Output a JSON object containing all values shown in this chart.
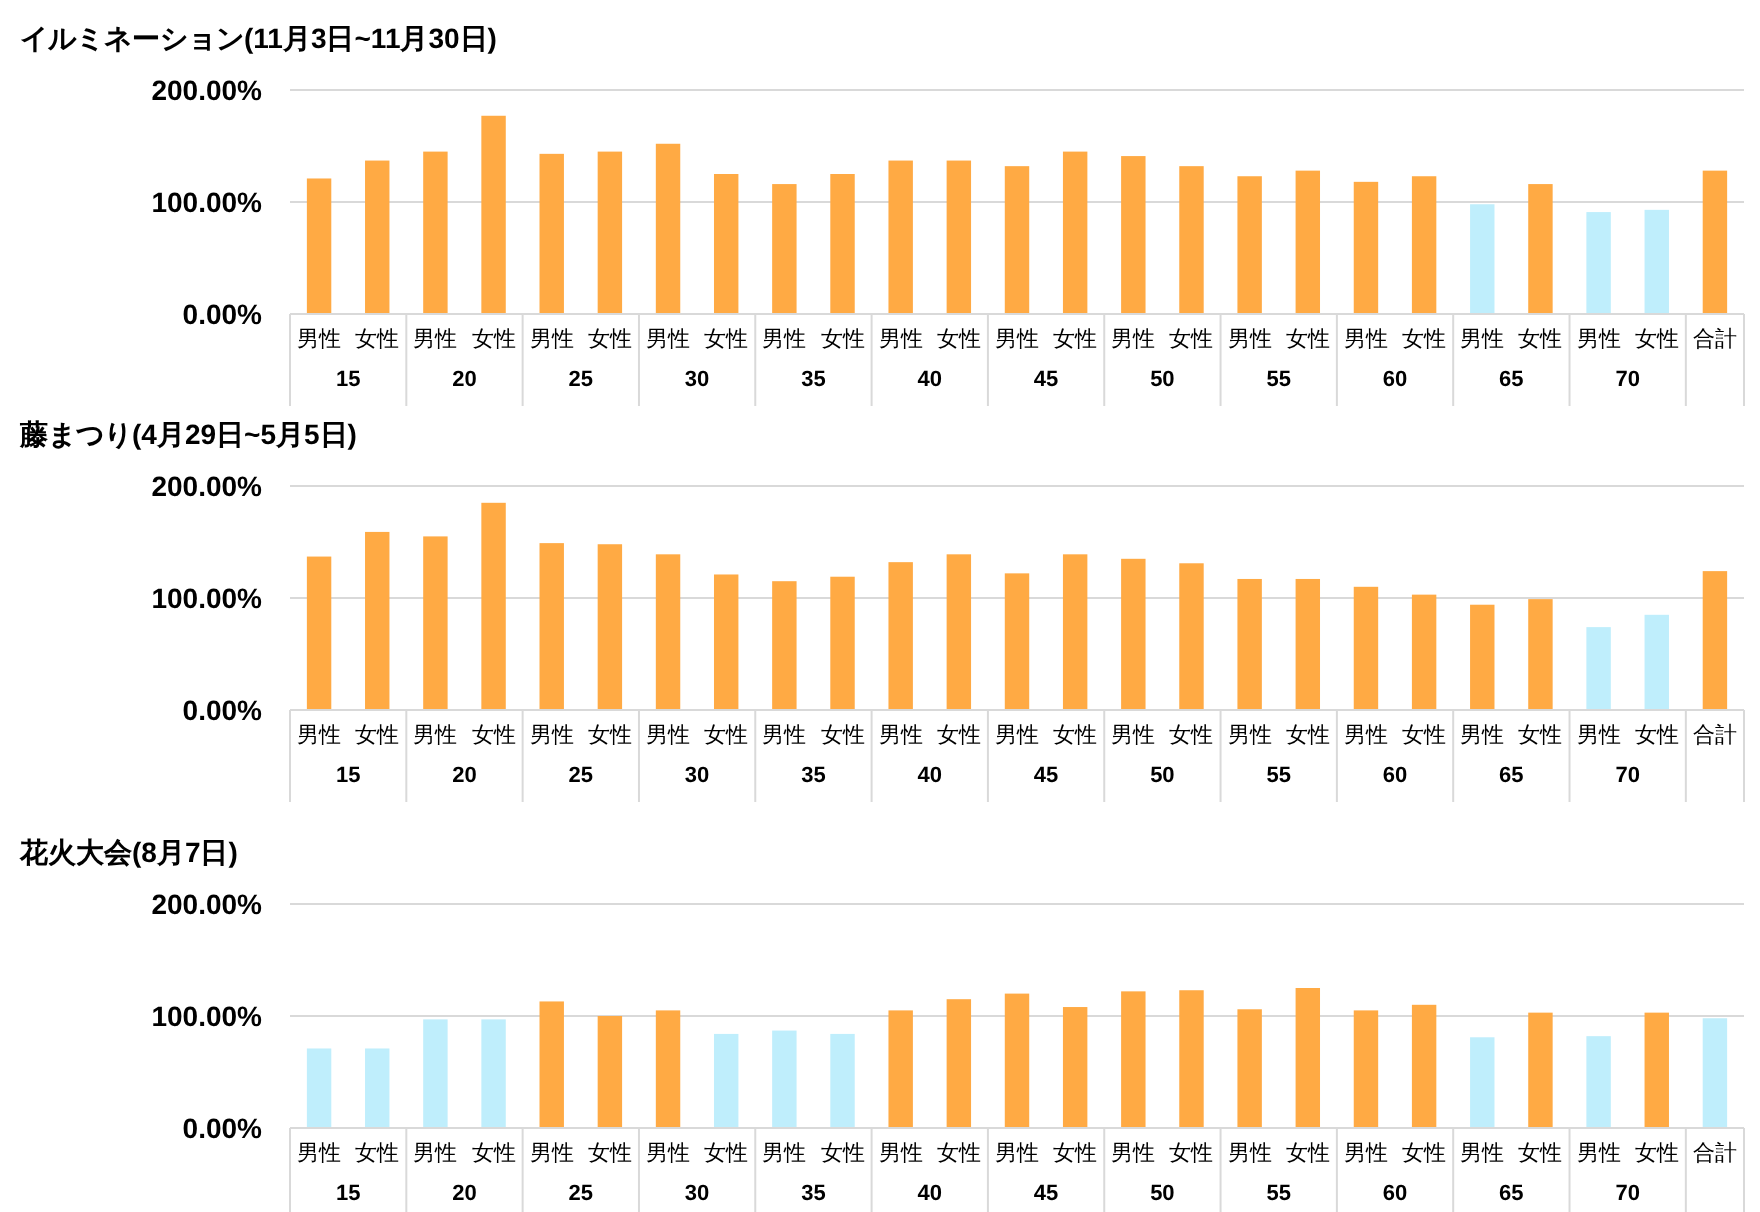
{
  "chart_data": [
    {
      "type": "bar",
      "title": "イルミネーション(11月3日~11月30日)",
      "categories": [
        "男性",
        "女性",
        "男性",
        "女性",
        "男性",
        "女性",
        "男性",
        "女性",
        "男性",
        "女性",
        "男性",
        "女性",
        "男性",
        "女性",
        "男性",
        "女性",
        "男性",
        "女性",
        "男性",
        "女性",
        "男性",
        "女性",
        "男性",
        "女性",
        "合計"
      ],
      "annotations": [
        "15",
        "20",
        "25",
        "30",
        "35",
        "40",
        "45",
        "50",
        "55",
        "60",
        "65",
        "70"
      ],
      "values": [
        121,
        137,
        145,
        177,
        143,
        145,
        152,
        125,
        116,
        125,
        137,
        137,
        132,
        145,
        141,
        132,
        123,
        128,
        118,
        123,
        98,
        116,
        91,
        93,
        128
      ],
      "colors": [
        "#ffaa44",
        "#ffaa44",
        "#ffaa44",
        "#ffaa44",
        "#ffaa44",
        "#ffaa44",
        "#ffaa44",
        "#ffaa44",
        "#ffaa44",
        "#ffaa44",
        "#ffaa44",
        "#ffaa44",
        "#ffaa44",
        "#ffaa44",
        "#ffaa44",
        "#ffaa44",
        "#ffaa44",
        "#ffaa44",
        "#ffaa44",
        "#ffaa44",
        "#bfeefc",
        "#ffaa44",
        "#bfeefc",
        "#bfeefc",
        "#ffaa44"
      ],
      "ylim": [
        0,
        200
      ],
      "yticks": [
        {
          "value": 0,
          "label": "0.00%"
        },
        {
          "value": 100,
          "label": "100.00%"
        },
        {
          "value": 200,
          "label": "200.00%"
        }
      ],
      "grid": "y"
    },
    {
      "type": "bar",
      "title": "藤まつり(4月29日~5月5日)",
      "categories": [
        "男性",
        "女性",
        "男性",
        "女性",
        "男性",
        "女性",
        "男性",
        "女性",
        "男性",
        "女性",
        "男性",
        "女性",
        "男性",
        "女性",
        "男性",
        "女性",
        "男性",
        "女性",
        "男性",
        "女性",
        "男性",
        "女性",
        "男性",
        "女性",
        "合計"
      ],
      "annotations": [
        "15",
        "20",
        "25",
        "30",
        "35",
        "40",
        "45",
        "50",
        "55",
        "60",
        "65",
        "70"
      ],
      "values": [
        137,
        159,
        155,
        185,
        149,
        148,
        139,
        121,
        115,
        119,
        132,
        139,
        122,
        139,
        135,
        131,
        117,
        117,
        110,
        103,
        94,
        99,
        74,
        85,
        124
      ],
      "colors": [
        "#ffaa44",
        "#ffaa44",
        "#ffaa44",
        "#ffaa44",
        "#ffaa44",
        "#ffaa44",
        "#ffaa44",
        "#ffaa44",
        "#ffaa44",
        "#ffaa44",
        "#ffaa44",
        "#ffaa44",
        "#ffaa44",
        "#ffaa44",
        "#ffaa44",
        "#ffaa44",
        "#ffaa44",
        "#ffaa44",
        "#ffaa44",
        "#ffaa44",
        "#ffaa44",
        "#ffaa44",
        "#bfeefc",
        "#bfeefc",
        "#ffaa44"
      ],
      "ylim": [
        0,
        200
      ],
      "yticks": [
        {
          "value": 0,
          "label": "0.00%"
        },
        {
          "value": 100,
          "label": "100.00%"
        },
        {
          "value": 200,
          "label": "200.00%"
        }
      ],
      "grid": "y"
    },
    {
      "type": "bar",
      "title": "花火大会(8月7日)",
      "categories": [
        "男性",
        "女性",
        "男性",
        "女性",
        "男性",
        "女性",
        "男性",
        "女性",
        "男性",
        "女性",
        "男性",
        "女性",
        "男性",
        "女性",
        "男性",
        "女性",
        "男性",
        "女性",
        "男性",
        "女性",
        "男性",
        "女性",
        "男性",
        "女性",
        "合計"
      ],
      "annotations": [
        "15",
        "20",
        "25",
        "30",
        "35",
        "40",
        "45",
        "50",
        "55",
        "60",
        "65",
        "70"
      ],
      "values": [
        71,
        71,
        97,
        97,
        113,
        100,
        105,
        84,
        87,
        84,
        105,
        115,
        120,
        108,
        122,
        123,
        106,
        125,
        105,
        110,
        81,
        103,
        82,
        103,
        98
      ],
      "colors": [
        "#bfeefc",
        "#bfeefc",
        "#bfeefc",
        "#bfeefc",
        "#ffaa44",
        "#ffaa44",
        "#ffaa44",
        "#bfeefc",
        "#bfeefc",
        "#bfeefc",
        "#ffaa44",
        "#ffaa44",
        "#ffaa44",
        "#ffaa44",
        "#ffaa44",
        "#ffaa44",
        "#ffaa44",
        "#ffaa44",
        "#ffaa44",
        "#ffaa44",
        "#bfeefc",
        "#ffaa44",
        "#bfeefc",
        "#ffaa44",
        "#bfeefc"
      ],
      "ylim": [
        0,
        200
      ],
      "yticks": [
        {
          "value": 0,
          "label": "0.00%"
        },
        {
          "value": 100,
          "label": "100.00%"
        },
        {
          "value": 200,
          "label": "200.00%"
        }
      ],
      "grid": "y"
    }
  ]
}
